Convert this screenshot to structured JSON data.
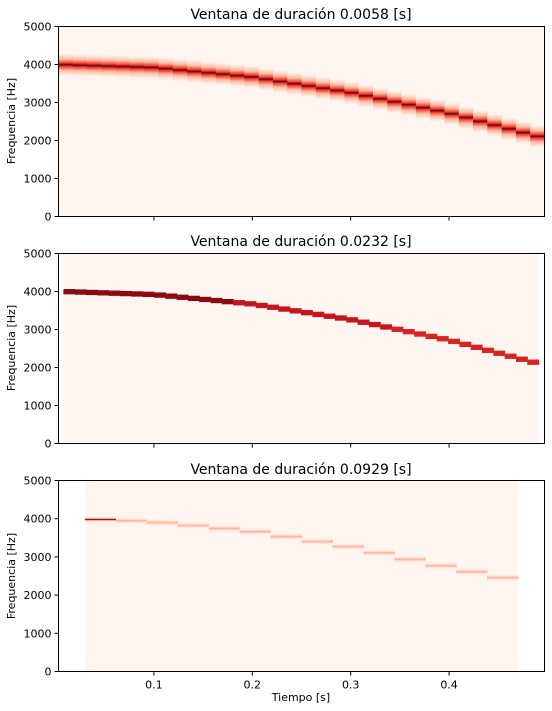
{
  "chart_data": [
    {
      "type": "heatmap",
      "title": "Ventana de duración 0.0058 [s]",
      "ylabel": "Frequencia [Hz]",
      "xlabel": "",
      "xlim": [
        0.003,
        0.497
      ],
      "ylim": [
        0,
        5000
      ],
      "yticks": [
        0,
        1000,
        2000,
        3000,
        4000,
        5000
      ],
      "xticks": [
        0.1,
        0.2,
        0.3,
        0.4
      ],
      "xtick_labels_shown": false,
      "colormap": "Reds",
      "data_extent": [
        0.003,
        0.497
      ],
      "segments": 34,
      "band_halfwidth_hz": 290,
      "ridge": {
        "t": [
          0.003,
          0.1,
          0.2,
          0.3,
          0.4,
          0.497
        ],
        "f": [
          4000,
          3920,
          3670,
          3260,
          2720,
          2060
        ]
      }
    },
    {
      "type": "heatmap",
      "title": "Ventana de duración 0.0232 [s]",
      "ylabel": "Frequencia [Hz]",
      "xlabel": "",
      "xlim": [
        0.003,
        0.497
      ],
      "ylim": [
        0,
        5000
      ],
      "yticks": [
        0,
        1000,
        2000,
        3000,
        4000,
        5000
      ],
      "xticks": [
        0.1,
        0.2,
        0.3,
        0.4
      ],
      "xtick_labels_shown": false,
      "colormap": "Reds",
      "data_extent": [
        0.008,
        0.491
      ],
      "segments": 42,
      "band_halfwidth_hz": 70,
      "ridge": {
        "t": [
          0.008,
          0.1,
          0.2,
          0.3,
          0.4,
          0.491
        ],
        "f": [
          4000,
          3920,
          3670,
          3260,
          2720,
          2100
        ]
      }
    },
    {
      "type": "heatmap",
      "title": "Ventana de duración 0.0929 [s]",
      "ylabel": "Frequencia [Hz]",
      "xlabel": "Tiempo [s]",
      "xlim": [
        0.003,
        0.497
      ],
      "ylim": [
        0,
        5000
      ],
      "yticks": [
        0,
        1000,
        2000,
        3000,
        4000,
        5000
      ],
      "xticks": [
        0.1,
        0.2,
        0.3,
        0.4
      ],
      "xtick_labels": [
        "0.1",
        "0.2",
        "0.3",
        "0.4"
      ],
      "xtick_labels_shown": true,
      "colormap": "Reds",
      "data_extent": [
        0.03,
        0.47
      ],
      "segments": 14,
      "band_halfwidth_hz": 90,
      "ridge": {
        "t": [
          0.03,
          0.1,
          0.2,
          0.3,
          0.4,
          0.47
        ],
        "f": [
          4000,
          3920,
          3670,
          3260,
          2720,
          2380
        ]
      }
    }
  ],
  "colors": {
    "background_cmap_low": "#fff5f0",
    "cmap_high": "#67000d"
  }
}
